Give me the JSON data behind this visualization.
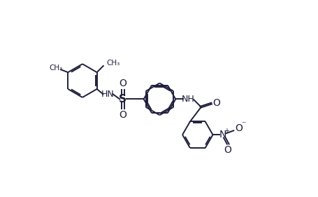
{
  "bg_color": "#ffffff",
  "line_color": "#1e1e3c",
  "line_width": 1.4,
  "dbo": 0.055,
  "figsize": [
    4.56,
    2.81
  ],
  "dpi": 100,
  "xlim": [
    0,
    10
  ],
  "ylim": [
    0,
    6.17
  ]
}
